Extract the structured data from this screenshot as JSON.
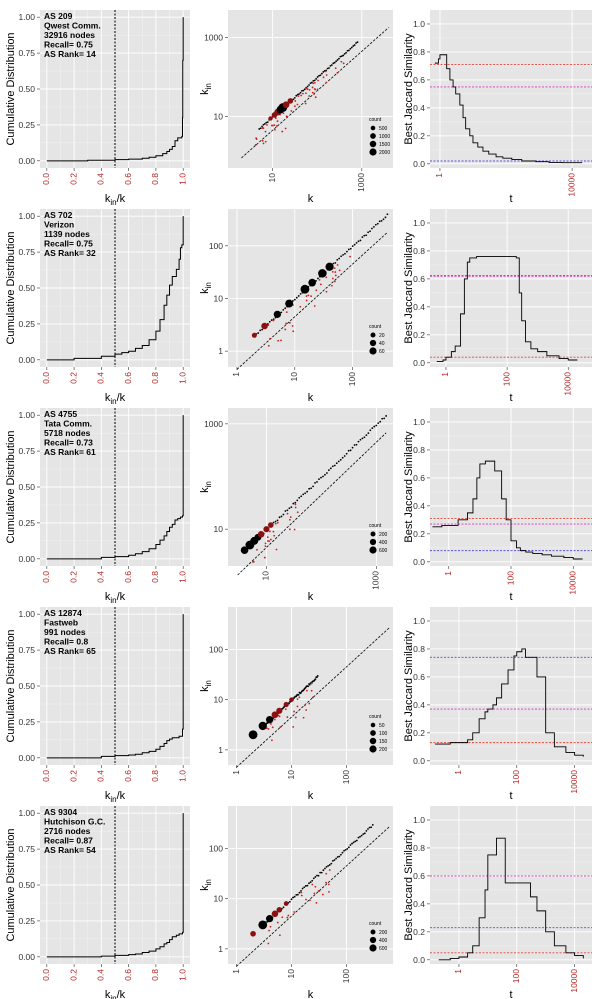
{
  "chart_data": [
    {
      "type": "line",
      "row": 0,
      "column": "cdf",
      "ylabel": "Cumulative Distribution",
      "xlabel": "k_in/k",
      "xlim": [
        0,
        1
      ],
      "ylim": [
        0,
        1
      ],
      "xticks": [
        "0.0",
        "0.2",
        "0.4",
        "0.6",
        "0.8",
        "1.0"
      ],
      "yticks": [
        "0.00",
        "0.25",
        "0.50",
        "0.75",
        "1.00"
      ],
      "vline": 0.5,
      "annotation": [
        "AS 209",
        "Qwest Comm.",
        "32916 nodes",
        "Recall= 0.75",
        "AS Rank= 14"
      ],
      "x": [
        0,
        0.3,
        0.5,
        0.6,
        0.7,
        0.75,
        0.8,
        0.85,
        0.88,
        0.9,
        0.92,
        0.94,
        0.96,
        0.97,
        0.99,
        0.995,
        0.997,
        1.0
      ],
      "y": [
        0,
        0.004,
        0.008,
        0.012,
        0.018,
        0.025,
        0.035,
        0.05,
        0.065,
        0.08,
        0.1,
        0.14,
        0.16,
        0.16,
        0.17,
        0.3,
        0.7,
        1.0
      ]
    },
    {
      "type": "scatter",
      "row": 0,
      "column": "degree",
      "xlabel": "k",
      "ylabel": "k_in",
      "scale": "log",
      "xlim": [
        1,
        5000
      ],
      "ylim": [
        0.5,
        5000
      ],
      "xticks": [
        10,
        1000
      ],
      "yticks": [
        10,
        1000
      ],
      "legend": {
        "title": "count",
        "values": [
          500,
          1000,
          1500,
          2000
        ]
      },
      "diag_x": [
        [
          2,
          4000
        ]
      ],
      "ridge_x": [
        5,
        800
      ],
      "big_points": [
        [
          9,
          9,
          200
        ],
        [
          11,
          11,
          500
        ],
        [
          13,
          13,
          900
        ],
        [
          15,
          15,
          1400
        ],
        [
          17,
          17,
          2000
        ],
        [
          20,
          20,
          900
        ],
        [
          25,
          25,
          500
        ]
      ],
      "spread_x": [
        4,
        400
      ],
      "spread_count": 55
    },
    {
      "type": "line",
      "row": 0,
      "column": "jaccard",
      "ylabel": "Best Jaccard Similarity",
      "xlabel": "t",
      "xlim": [
        0.5,
        40000
      ],
      "ylim": [
        -0.03,
        1.1
      ],
      "xticks": [
        1,
        10000
      ],
      "yticks": [
        "0.0",
        "0.2",
        "0.4",
        "0.6",
        "0.8",
        "1.0"
      ],
      "hlines": [
        {
          "y": 0.71,
          "color": "#e8443a"
        },
        {
          "y": 0.55,
          "color": "#d633c4"
        },
        {
          "y": 0.02,
          "color": "#5a52e0"
        }
      ],
      "x": [
        0.7,
        0.9,
        1,
        1.3,
        1.6,
        2,
        2.5,
        3,
        4,
        5,
        6,
        8,
        10,
        14,
        20,
        30,
        50,
        80,
        150,
        300,
        800,
        2000,
        5000,
        20000
      ],
      "y": [
        0.72,
        0.75,
        0.78,
        0.78,
        0.68,
        0.6,
        0.55,
        0.5,
        0.42,
        0.33,
        0.25,
        0.2,
        0.15,
        0.12,
        0.09,
        0.07,
        0.05,
        0.04,
        0.03,
        0.02,
        0.015,
        0.01,
        0.008,
        0.008
      ]
    },
    {
      "type": "line",
      "row": 1,
      "column": "cdf",
      "ylabel": "Cumulative Distribution",
      "xlabel": "k_in/k",
      "xlim": [
        0,
        1
      ],
      "ylim": [
        0,
        1
      ],
      "xticks": [
        "0.0",
        "0.2",
        "0.4",
        "0.6",
        "0.8",
        "1.0"
      ],
      "yticks": [
        "0.00",
        "0.25",
        "0.50",
        "0.75",
        "1.00"
      ],
      "vline": 0.5,
      "annotation": [
        "AS 702",
        "Verizon",
        "1139 nodes",
        "Recall= 0.75",
        "AS Rank= 32"
      ],
      "x": [
        0,
        0.2,
        0.4,
        0.5,
        0.55,
        0.6,
        0.65,
        0.7,
        0.75,
        0.8,
        0.83,
        0.86,
        0.88,
        0.9,
        0.92,
        0.95,
        0.97,
        0.98,
        0.99,
        1.0
      ],
      "y": [
        0,
        0.01,
        0.025,
        0.04,
        0.05,
        0.06,
        0.08,
        0.1,
        0.14,
        0.2,
        0.28,
        0.38,
        0.45,
        0.52,
        0.58,
        0.63,
        0.7,
        0.78,
        0.8,
        1.0
      ]
    },
    {
      "type": "scatter",
      "row": 1,
      "column": "degree",
      "xlabel": "k",
      "ylabel": "k_in",
      "scale": "log",
      "xlim": [
        0.7,
        500
      ],
      "ylim": [
        0.5,
        500
      ],
      "xticks": [
        1,
        10,
        100
      ],
      "yticks": [
        1,
        10,
        100
      ],
      "legend": {
        "title": "count",
        "values": [
          20,
          40,
          60
        ]
      },
      "diag_x": [
        [
          1,
          400
        ]
      ],
      "ridge_x": [
        2,
        400
      ],
      "big_points": [
        [
          2,
          2,
          10
        ],
        [
          3,
          3,
          25
        ],
        [
          5,
          5,
          35
        ],
        [
          8,
          8,
          45
        ],
        [
          15,
          15,
          60
        ],
        [
          20,
          20,
          40
        ],
        [
          30,
          30,
          55
        ],
        [
          40,
          40,
          50
        ]
      ],
      "spread_x": [
        3,
        100
      ],
      "spread_count": 35
    },
    {
      "type": "line",
      "row": 1,
      "column": "jaccard",
      "ylabel": "Best Jaccard Similarity",
      "xlabel": "t",
      "xlim": [
        0.3,
        60000
      ],
      "ylim": [
        -0.03,
        1.1
      ],
      "xticks": [
        1,
        100,
        10000
      ],
      "yticks": [
        "0.0",
        "0.2",
        "0.4",
        "0.6",
        "0.8",
        "1.0"
      ],
      "hlines": [
        {
          "y": 0.625,
          "color": "#e8443a"
        },
        {
          "y": 0.62,
          "color": "#d633c4"
        },
        {
          "y": 0.04,
          "color": "#e8443a"
        }
      ],
      "x": [
        0.5,
        0.8,
        1,
        1.5,
        2,
        3,
        4,
        5,
        6,
        8,
        10,
        20,
        50,
        100,
        200,
        250,
        300,
        400,
        600,
        1000,
        2000,
        5000,
        10000,
        20000
      ],
      "y": [
        0.01,
        0.02,
        0.04,
        0.08,
        0.12,
        0.35,
        0.6,
        0.72,
        0.75,
        0.75,
        0.76,
        0.76,
        0.76,
        0.76,
        0.75,
        0.5,
        0.3,
        0.15,
        0.1,
        0.08,
        0.05,
        0.03,
        0.02,
        0.02
      ]
    },
    {
      "type": "line",
      "row": 2,
      "column": "cdf",
      "ylabel": "Cumulative Distribution",
      "xlabel": "k_in/k",
      "xlim": [
        0,
        1
      ],
      "ylim": [
        0,
        1
      ],
      "xticks": [
        "0.0",
        "0.2",
        "0.4",
        "0.6",
        "0.8",
        "1.0"
      ],
      "yticks": [
        "0.00",
        "0.25",
        "0.50",
        "0.75",
        "1.00"
      ],
      "vline": 0.5,
      "annotation": [
        "AS 4755",
        "Tata Comm.",
        "5718 nodes",
        "Recall= 0.73",
        "AS Rank= 61"
      ],
      "x": [
        0,
        0.4,
        0.5,
        0.6,
        0.65,
        0.7,
        0.75,
        0.8,
        0.83,
        0.86,
        0.88,
        0.9,
        0.92,
        0.94,
        0.96,
        0.98,
        0.995,
        1.0
      ],
      "y": [
        0,
        0.01,
        0.015,
        0.025,
        0.035,
        0.05,
        0.07,
        0.1,
        0.13,
        0.16,
        0.19,
        0.22,
        0.24,
        0.27,
        0.28,
        0.29,
        0.3,
        1.0
      ]
    },
    {
      "type": "scatter",
      "row": 2,
      "column": "degree",
      "xlabel": "k",
      "ylabel": "k_in",
      "scale": "log",
      "xlim": [
        2,
        2000
      ],
      "ylim": [
        2,
        2000
      ],
      "xticks": [
        10,
        1000
      ],
      "yticks": [
        10,
        1000
      ],
      "legend": {
        "title": "count",
        "values": [
          200,
          400,
          600
        ]
      },
      "diag_x": [
        [
          3,
          1500
        ]
      ],
      "ridge_x": [
        5,
        1500
      ],
      "big_points": [
        [
          4,
          4,
          400
        ],
        [
          5,
          5,
          600
        ],
        [
          6,
          6,
          450
        ],
        [
          7,
          7,
          300
        ],
        [
          8,
          8,
          250
        ],
        [
          10,
          10,
          200
        ],
        [
          12,
          12,
          150
        ]
      ],
      "spread_x": [
        5,
        40
      ],
      "spread_count": 25
    },
    {
      "type": "line",
      "row": 2,
      "column": "jaccard",
      "ylabel": "Best Jaccard Similarity",
      "xlabel": "t",
      "xlim": [
        0.25,
        40000
      ],
      "ylim": [
        -0.03,
        1.1
      ],
      "xticks": [
        1,
        100,
        10000
      ],
      "yticks": [
        "0.0",
        "0.2",
        "0.4",
        "0.6",
        "0.8",
        "1.0"
      ],
      "hlines": [
        {
          "y": 0.31,
          "color": "#e8443a"
        },
        {
          "y": 0.27,
          "color": "#d633c4"
        },
        {
          "y": 0.08,
          "color": "#5a52e0"
        }
      ],
      "x": [
        0.3,
        0.6,
        1,
        2,
        4,
        6,
        8,
        10,
        15,
        20,
        30,
        50,
        70,
        100,
        150,
        200,
        300,
        500,
        1000,
        2000,
        5000,
        10000,
        20000
      ],
      "y": [
        0.25,
        0.26,
        0.26,
        0.3,
        0.35,
        0.45,
        0.6,
        0.7,
        0.72,
        0.72,
        0.65,
        0.45,
        0.3,
        0.15,
        0.1,
        0.08,
        0.07,
        0.06,
        0.05,
        0.04,
        0.03,
        0.02,
        0.02
      ]
    },
    {
      "type": "line",
      "row": 3,
      "column": "cdf",
      "ylabel": "Cumulative Distribution",
      "xlabel": "k_in/k",
      "xlim": [
        0,
        1
      ],
      "ylim": [
        0,
        1
      ],
      "xticks": [
        "0.0",
        "0.2",
        "0.4",
        "0.6",
        "0.8",
        "1.0"
      ],
      "yticks": [
        "0.00",
        "0.25",
        "0.50",
        "0.75",
        "1.00"
      ],
      "vline": 0.5,
      "annotation": [
        "AS 12874",
        "Fastweb",
        "991 nodes",
        "Recall= 0.8",
        "AS Rank= 65"
      ],
      "x": [
        0,
        0.4,
        0.5,
        0.6,
        0.65,
        0.7,
        0.75,
        0.8,
        0.83,
        0.86,
        0.88,
        0.9,
        0.92,
        0.95,
        0.97,
        0.98,
        0.995,
        1.0
      ],
      "y": [
        0,
        0.01,
        0.015,
        0.02,
        0.025,
        0.035,
        0.045,
        0.06,
        0.08,
        0.1,
        0.12,
        0.13,
        0.14,
        0.14,
        0.15,
        0.15,
        0.2,
        1.0
      ]
    },
    {
      "type": "scatter",
      "row": 3,
      "column": "degree",
      "xlabel": "k",
      "ylabel": "k_in",
      "scale": "log",
      "xlim": [
        0.7,
        700
      ],
      "ylim": [
        0.5,
        700
      ],
      "xticks": [
        1,
        10,
        100
      ],
      "yticks": [
        1,
        10,
        100
      ],
      "legend": {
        "title": "count",
        "values": [
          50,
          100,
          150,
          200
        ]
      },
      "diag_x": [
        [
          1,
          600
        ]
      ],
      "ridge_x": [
        3,
        30
      ],
      "big_points": [
        [
          2,
          2,
          200
        ],
        [
          3,
          3,
          170
        ],
        [
          4,
          4,
          120
        ],
        [
          5,
          5,
          90
        ],
        [
          6,
          6,
          70
        ],
        [
          8,
          8,
          40
        ],
        [
          10,
          10,
          25
        ]
      ],
      "spread_x": [
        3,
        30
      ],
      "spread_count": 25
    },
    {
      "type": "line",
      "row": 3,
      "column": "jaccard",
      "ylabel": "Best Jaccard Similarity",
      "xlabel": "t",
      "xlim": [
        0.1,
        40000
      ],
      "ylim": [
        -0.03,
        1.1
      ],
      "xticks": [
        1,
        100,
        10000
      ],
      "yticks": [
        "0.0",
        "0.2",
        "0.4",
        "0.6",
        "0.8",
        "1.0"
      ],
      "hlines": [
        {
          "y": 0.74,
          "color": "#5a52e0"
        },
        {
          "y": 0.37,
          "color": "#d633c4"
        },
        {
          "y": 0.13,
          "color": "#e8443a"
        }
      ],
      "x": [
        0.15,
        0.5,
        1,
        2,
        3,
        5,
        8,
        10,
        15,
        20,
        30,
        50,
        80,
        100,
        150,
        200,
        300,
        400,
        500,
        1000,
        2000,
        5000,
        10000,
        20000
      ],
      "y": [
        0.12,
        0.13,
        0.13,
        0.15,
        0.2,
        0.3,
        0.35,
        0.37,
        0.4,
        0.45,
        0.55,
        0.65,
        0.75,
        0.78,
        0.8,
        0.74,
        0.74,
        0.74,
        0.6,
        0.2,
        0.1,
        0.06,
        0.04,
        0.03
      ]
    },
    {
      "type": "line",
      "row": 4,
      "column": "cdf",
      "ylabel": "Cumulative Distribution",
      "xlabel": "k_in/k",
      "xlim": [
        0,
        1
      ],
      "ylim": [
        0,
        1
      ],
      "xticks": [
        "0.0",
        "0.2",
        "0.4",
        "0.6",
        "0.8",
        "1.0"
      ],
      "yticks": [
        "0.00",
        "0.25",
        "0.50",
        "0.75",
        "1.00"
      ],
      "vline": 0.5,
      "annotation": [
        "AS 9304",
        "Hutchison G.C.",
        "2716 nodes",
        "Recall= 0.87",
        "AS Rank= 54"
      ],
      "x": [
        0,
        0.4,
        0.5,
        0.6,
        0.65,
        0.7,
        0.75,
        0.8,
        0.83,
        0.86,
        0.88,
        0.9,
        0.92,
        0.95,
        0.97,
        0.98,
        0.995,
        1.0
      ],
      "y": [
        0,
        0.005,
        0.01,
        0.015,
        0.02,
        0.03,
        0.04,
        0.055,
        0.07,
        0.09,
        0.1,
        0.12,
        0.14,
        0.15,
        0.16,
        0.16,
        0.17,
        1.0
      ]
    },
    {
      "type": "scatter",
      "row": 4,
      "column": "degree",
      "xlabel": "k",
      "ylabel": "k_in",
      "scale": "log",
      "xlim": [
        0.7,
        700
      ],
      "ylim": [
        0.5,
        700
      ],
      "xticks": [
        1,
        10,
        100
      ],
      "yticks": [
        1,
        10,
        100
      ],
      "legend": {
        "title": "count",
        "values": [
          200,
          400,
          600
        ]
      },
      "diag_x": [
        [
          1,
          600
        ]
      ],
      "ridge_x": [
        3,
        300
      ],
      "big_points": [
        [
          2,
          2,
          150
        ],
        [
          3,
          3,
          600
        ],
        [
          4,
          4,
          350
        ],
        [
          5,
          5,
          250
        ],
        [
          6,
          6,
          150
        ],
        [
          8,
          8,
          80
        ]
      ],
      "spread_x": [
        3,
        60
      ],
      "spread_count": 25
    },
    {
      "type": "line",
      "row": 4,
      "column": "jaccard",
      "ylabel": "Best Jaccard Similarity",
      "xlabel": "t",
      "xlim": [
        0.1,
        40000
      ],
      "ylim": [
        -0.03,
        1.1
      ],
      "xticks": [
        1,
        100,
        10000
      ],
      "yticks": [
        "0.0",
        "0.2",
        "0.4",
        "0.6",
        "0.8",
        "1.0"
      ],
      "hlines": [
        {
          "y": 0.6,
          "color": "#d633c4"
        },
        {
          "y": 0.23,
          "color": "#5a52e0"
        },
        {
          "y": 0.05,
          "color": "#e8443a"
        }
      ],
      "x": [
        0.2,
        0.5,
        1,
        2,
        3,
        5,
        8,
        10,
        15,
        20,
        30,
        40,
        50,
        100,
        200,
        300,
        500,
        1000,
        2000,
        5000,
        10000,
        20000
      ],
      "y": [
        0.0,
        0.01,
        0.02,
        0.05,
        0.1,
        0.3,
        0.5,
        0.75,
        0.75,
        0.87,
        0.87,
        0.55,
        0.55,
        0.55,
        0.55,
        0.45,
        0.35,
        0.2,
        0.1,
        0.05,
        0.03,
        0.01
      ]
    }
  ]
}
